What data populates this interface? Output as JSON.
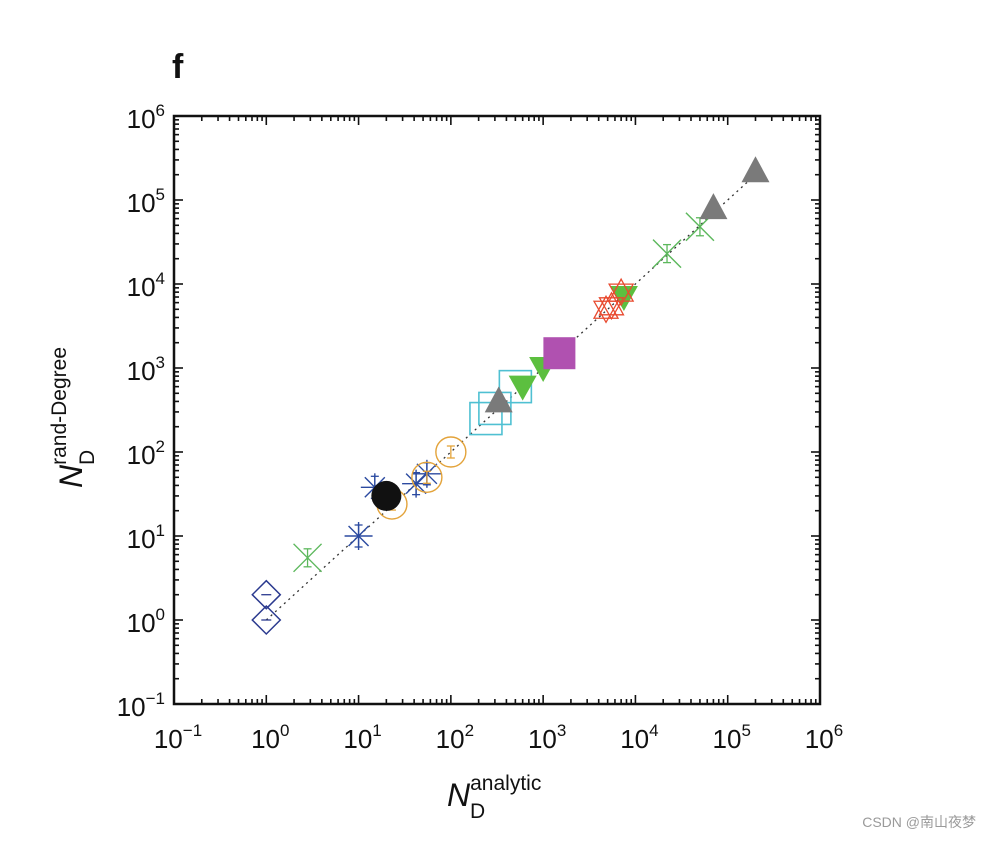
{
  "chart_data": {
    "type": "scatter",
    "panel_label": "f",
    "xlabel": {
      "base": "N",
      "sub": "D",
      "sup": "analytic"
    },
    "ylabel": {
      "base": "N",
      "sub": "D",
      "sup": "rand-Degree"
    },
    "x_scale": "log",
    "y_scale": "log",
    "xlim_exp": [
      -1,
      6
    ],
    "ylim_exp": [
      -1,
      6
    ],
    "x_ticks": [
      {
        "base": "10",
        "exp": "−1",
        "e": -1
      },
      {
        "base": "10",
        "exp": "0",
        "e": 0
      },
      {
        "base": "10",
        "exp": "1",
        "e": 1
      },
      {
        "base": "10",
        "exp": "2",
        "e": 2
      },
      {
        "base": "10",
        "exp": "3",
        "e": 3
      },
      {
        "base": "10",
        "exp": "4",
        "e": 4
      },
      {
        "base": "10",
        "exp": "5",
        "e": 5
      },
      {
        "base": "10",
        "exp": "6",
        "e": 6
      }
    ],
    "y_ticks": [
      {
        "base": "10",
        "exp": "−1",
        "e": -1
      },
      {
        "base": "10",
        "exp": "0",
        "e": 0
      },
      {
        "base": "10",
        "exp": "1",
        "e": 1
      },
      {
        "base": "10",
        "exp": "2",
        "e": 2
      },
      {
        "base": "10",
        "exp": "3",
        "e": 3
      },
      {
        "base": "10",
        "exp": "4",
        "e": 4
      },
      {
        "base": "10",
        "exp": "5",
        "e": 5
      },
      {
        "base": "10",
        "exp": "6",
        "e": 6
      }
    ],
    "reference_line": {
      "style": "dotted",
      "from": [
        1,
        1
      ],
      "to": [
        200000,
        200000
      ],
      "color": "#333333"
    },
    "series": [
      {
        "name": "open-diamond",
        "marker": "diamond-open",
        "color": "#2b3a8f",
        "points": [
          {
            "x": 1,
            "y": 1
          },
          {
            "x": 1,
            "y": 2
          }
        ]
      },
      {
        "name": "green-x",
        "marker": "x",
        "color": "#5cb85c",
        "points": [
          {
            "x": 2.8,
            "y": 5.5
          },
          {
            "x": 22000,
            "y": 23000
          },
          {
            "x": 50000,
            "y": 48000
          }
        ]
      },
      {
        "name": "blue-asterisk",
        "marker": "asterisk",
        "color": "#2b4aa0",
        "points": [
          {
            "x": 10,
            "y": 10
          },
          {
            "x": 15,
            "y": 38
          },
          {
            "x": 42,
            "y": 42
          },
          {
            "x": 55,
            "y": 55
          }
        ]
      },
      {
        "name": "orange-open-circle",
        "marker": "circle-open",
        "color": "#e3a33a",
        "points": [
          {
            "x": 23,
            "y": 24
          },
          {
            "x": 55,
            "y": 50
          },
          {
            "x": 100,
            "y": 100
          }
        ]
      },
      {
        "name": "black-filled-circle",
        "marker": "circle-filled",
        "color": "#111111",
        "points": [
          {
            "x": 20,
            "y": 30
          }
        ]
      },
      {
        "name": "cyan-open-square",
        "marker": "square-open",
        "color": "#4fc0d2",
        "points": [
          {
            "x": 240,
            "y": 250
          },
          {
            "x": 300,
            "y": 330
          },
          {
            "x": 500,
            "y": 600
          }
        ]
      },
      {
        "name": "gray-triangle",
        "marker": "triangle-up-filled",
        "color": "#7a7a7a",
        "points": [
          {
            "x": 330,
            "y": 400
          },
          {
            "x": 70000,
            "y": 80000
          },
          {
            "x": 200000,
            "y": 220000
          }
        ]
      },
      {
        "name": "green-filled-down-triangle",
        "marker": "triangle-down-filled",
        "color": "#5cbf3f",
        "points": [
          {
            "x": 600,
            "y": 600
          },
          {
            "x": 1000,
            "y": 1000
          },
          {
            "x": 7500,
            "y": 7000
          }
        ]
      },
      {
        "name": "purple-filled-square",
        "marker": "square-filled",
        "color": "#b051b0",
        "points": [
          {
            "x": 1500,
            "y": 1500
          }
        ]
      },
      {
        "name": "red-open-triangles",
        "marker": "triangle-pair-open",
        "color": "#e84a2f",
        "points": [
          {
            "x": 4800,
            "y": 5000
          },
          {
            "x": 5500,
            "y": 5500
          },
          {
            "x": 7000,
            "y": 8000
          }
        ]
      }
    ]
  },
  "watermark": "CSDN @南山夜梦"
}
